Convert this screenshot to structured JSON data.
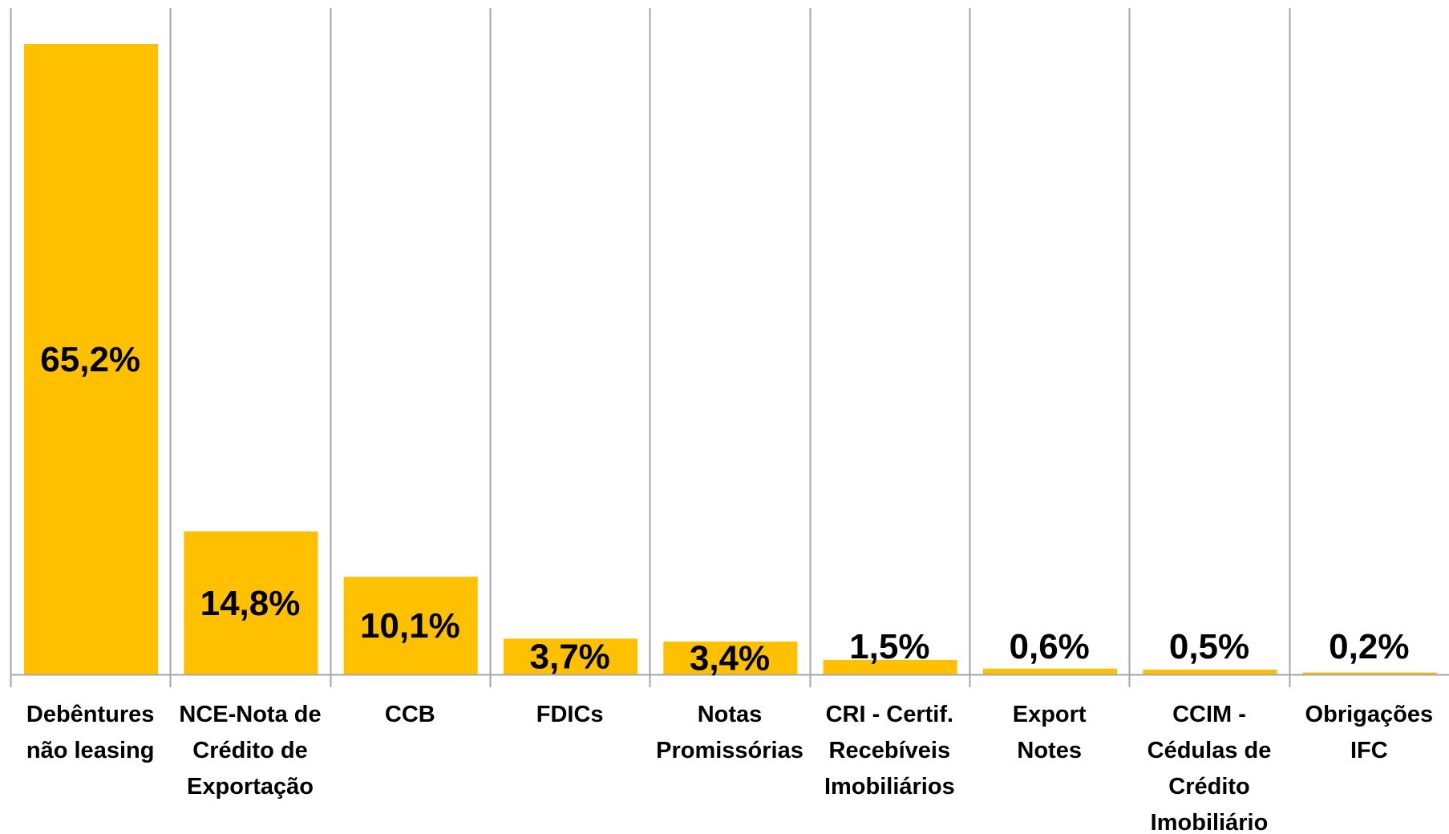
{
  "chart_data": {
    "type": "bar",
    "categories": [
      [
        "Debêntures",
        "não leasing"
      ],
      [
        "NCE-Nota de",
        "Crédito de",
        "Exportação"
      ],
      [
        "CCB"
      ],
      [
        "FDICs"
      ],
      [
        "Notas",
        "Promissórias"
      ],
      [
        "CRI - Certif.",
        "Recebíveis",
        "Imobiliários"
      ],
      [
        "Export",
        "Notes"
      ],
      [
        "CCIM -",
        "Cédulas de",
        "Crédito",
        "Imobiliário"
      ],
      [
        "Obrigações",
        "IFC"
      ]
    ],
    "values": [
      65.2,
      14.8,
      10.1,
      3.7,
      3.4,
      1.5,
      0.6,
      0.5,
      0.2
    ],
    "data_labels": [
      "65,2%",
      "14,8%",
      "10,1%",
      "3,7%",
      "3,4%",
      "1,5%",
      "0,6%",
      "0,5%",
      "0,2%"
    ],
    "title": "",
    "xlabel": "",
    "ylabel": "",
    "ylim": [
      0,
      70
    ],
    "grid": "vertical category separators",
    "legend": "none",
    "bar_color": "#FFC000",
    "grid_color": "#A6A6A6"
  }
}
